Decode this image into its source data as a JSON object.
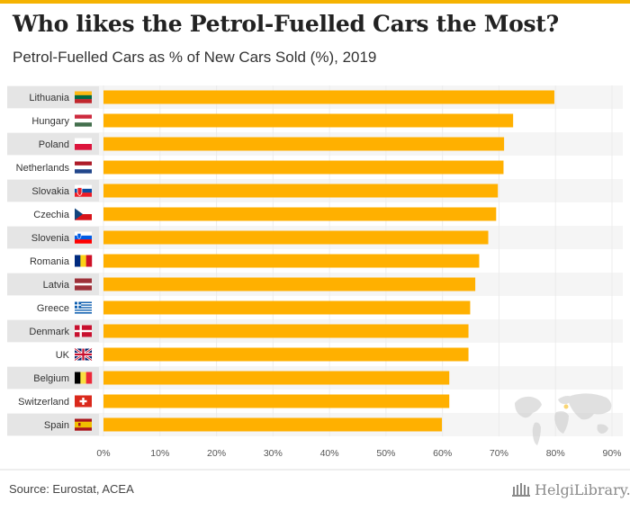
{
  "title": "Who likes the Petrol-Fuelled Cars the Most?",
  "subtitle": "Petrol-Fuelled Cars as % of New Cars Sold (%), 2019",
  "source": "Source: Eurostat, ACEA",
  "logo_text": "HelgiLibrary.",
  "colors": {
    "bar": "#ffb000",
    "accent": "#f5b301",
    "stripe": "#e5e5e5",
    "band": "#f5f5f5",
    "axis_text": "#555555"
  },
  "chart_data": {
    "type": "bar",
    "orientation": "horizontal",
    "title": "Who likes the Petrol-Fuelled Cars the Most?",
    "subtitle": "Petrol-Fuelled Cars as % of New Cars Sold (%), 2019",
    "categories": [
      "Lithuania",
      "Hungary",
      "Poland",
      "Netherlands",
      "Slovakia",
      "Czechia",
      "Slovenia",
      "Romania",
      "Latvia",
      "Greece",
      "Denmark",
      "UK",
      "Belgium",
      "Switzerland",
      "Spain"
    ],
    "values": [
      79.8,
      72.5,
      70.9,
      70.8,
      69.8,
      69.5,
      68.1,
      66.5,
      65.8,
      64.9,
      64.6,
      64.6,
      61.2,
      61.2,
      59.9
    ],
    "xlim": [
      0,
      90
    ],
    "xticks": [
      0,
      10,
      20,
      30,
      40,
      50,
      60,
      70,
      80,
      90
    ],
    "tick_labels": [
      "0%",
      "10%",
      "20%",
      "30%",
      "40%",
      "50%",
      "60%",
      "70%",
      "80%",
      "90%"
    ],
    "grid": true,
    "flags": [
      "lithuania-flag",
      "hungary-flag",
      "poland-flag",
      "netherlands-flag",
      "slovakia-flag",
      "czechia-flag",
      "slovenia-flag",
      "romania-flag",
      "latvia-flag",
      "greece-flag",
      "denmark-flag",
      "uk-flag",
      "belgium-flag",
      "switzerland-flag",
      "spain-flag"
    ]
  }
}
